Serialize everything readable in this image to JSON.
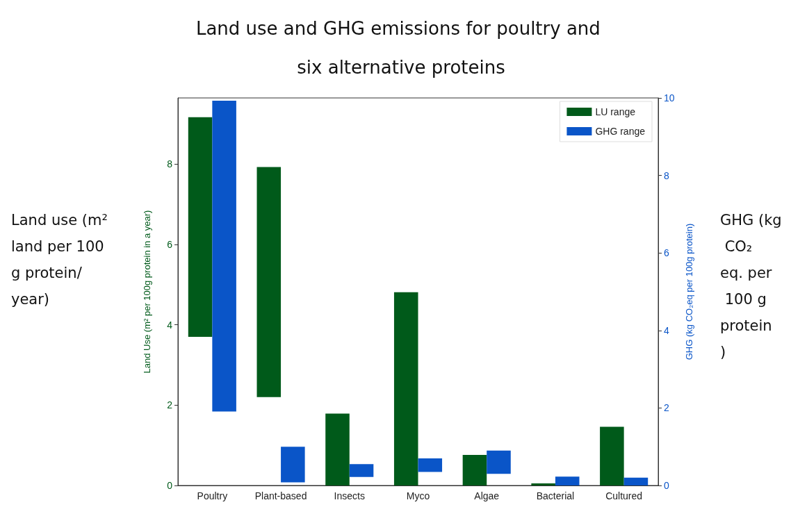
{
  "chart_data": {
    "type": "bar",
    "title": "Land use and GHG emissions for poultry and six alternative proteins",
    "categories": [
      "Poultry",
      "Plant-based",
      "Insects",
      "Myco",
      "Algae",
      "Bacterial",
      "Cultured"
    ],
    "series": [
      {
        "name": "LU range",
        "color": "#005a1a",
        "values": [
          5.47,
          5.73,
          1.79,
          4.81,
          0.76,
          0.05,
          1.46
        ],
        "base": [
          3.7,
          2.2,
          0,
          0,
          0,
          0,
          0
        ]
      },
      {
        "name": "GHG range",
        "color": "#0a55c8",
        "axis": "y2",
        "values": [
          8.02,
          0.92,
          0.33,
          0.35,
          0.6,
          0.23,
          0.2
        ],
        "base": [
          1.91,
          0.08,
          0.22,
          0.35,
          0.3,
          0,
          0
        ]
      }
    ],
    "ylabel": "Land Use (m² per 100g protein in a year)",
    "y2label": "GHG (kg CO₂eq per 100g protein)",
    "ylim": [
      0,
      9.65
    ],
    "yticks": [
      0,
      2,
      4,
      6,
      8
    ],
    "y2lim": [
      0,
      10
    ],
    "y2ticks": [
      0,
      2,
      4,
      6,
      8,
      10
    ],
    "annotations": [
      "Land use (m² land per 100 g protein/year)",
      "GHG (kg CO₂ eq. per 100 g protein)"
    ],
    "legend": "top right",
    "grid": false
  }
}
